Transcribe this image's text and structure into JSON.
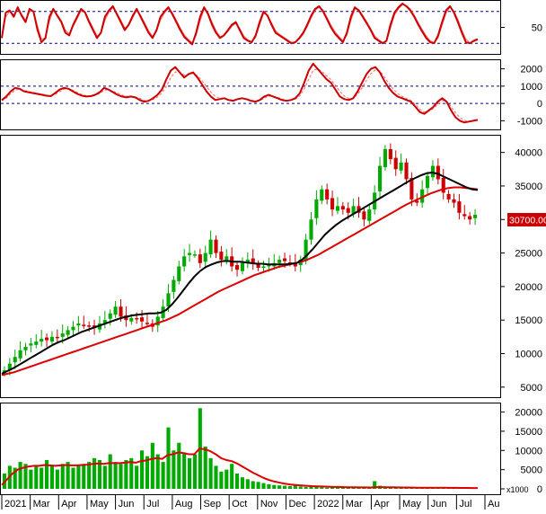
{
  "chart_data": [
    {
      "panel": "stochastic",
      "type": "line",
      "yticks": [
        50
      ],
      "guide_levels": [
        80,
        20
      ],
      "ylim": [
        0,
        100
      ],
      "series": [
        {
          "color": "#cc0000",
          "values": [
            30,
            78,
            82,
            70,
            88,
            72,
            60,
            85,
            80,
            45,
            22,
            30,
            70,
            85,
            72,
            60,
            40,
            35,
            55,
            70,
            85,
            78,
            60,
            45,
            30,
            40,
            70,
            82,
            90,
            75,
            60,
            45,
            55,
            72,
            85,
            70,
            55,
            40,
            30,
            45,
            70,
            80,
            88,
            75,
            60,
            45,
            32,
            25,
            18,
            40,
            70,
            88,
            75,
            55,
            40,
            30,
            35,
            45,
            55,
            60,
            45,
            30,
            25,
            22,
            35,
            60,
            80,
            72,
            55,
            40,
            35,
            30,
            25,
            20,
            22,
            30,
            40,
            55,
            72,
            85,
            90,
            80,
            65,
            50,
            38,
            30,
            22,
            40,
            70,
            88,
            82,
            70,
            58,
            45,
            30,
            25,
            20,
            25,
            55,
            78,
            88,
            95,
            90,
            82,
            70,
            55,
            42,
            30,
            22,
            20,
            35,
            60,
            82,
            90,
            78,
            60,
            40,
            22,
            20,
            25,
            28
          ]
        },
        {
          "color": "#ff6666",
          "values": [
            35,
            70,
            80,
            74,
            84,
            75,
            63,
            80,
            81,
            52,
            28,
            30,
            62,
            82,
            74,
            63,
            45,
            38,
            52,
            66,
            82,
            79,
            64,
            49,
            34,
            38,
            63,
            79,
            87,
            78,
            64,
            49,
            53,
            68,
            82,
            73,
            59,
            44,
            33,
            42,
            64,
            77,
            86,
            78,
            64,
            49,
            36,
            28,
            21,
            35,
            62,
            84,
            78,
            60,
            44,
            33,
            34,
            42,
            52,
            58,
            48,
            34,
            27,
            23,
            31,
            54,
            76,
            74,
            59,
            44,
            37,
            32,
            27,
            22,
            22,
            28,
            37,
            51,
            68,
            82,
            88,
            83,
            69,
            54,
            42,
            33,
            25,
            35,
            63,
            84,
            84,
            73,
            61,
            48,
            34,
            27,
            22,
            23,
            48,
            73,
            85,
            93,
            91,
            85,
            73,
            59,
            46,
            34,
            25,
            21,
            30,
            54,
            77,
            88,
            81,
            65,
            45,
            28,
            21,
            23,
            26
          ]
        }
      ]
    },
    {
      "panel": "macd",
      "type": "line",
      "yticks": [
        2000,
        1000,
        0,
        -1000
      ],
      "guide_levels": [
        1000,
        0
      ],
      "ylim": [
        -1500,
        2500
      ],
      "series": [
        {
          "color": "#cc0000",
          "values": [
            200,
            400,
            700,
            900,
            850,
            700,
            650,
            600,
            550,
            500,
            450,
            420,
            600,
            800,
            900,
            850,
            700,
            550,
            450,
            400,
            420,
            500,
            650,
            900,
            800,
            650,
            500,
            400,
            350,
            400,
            350,
            200,
            100,
            150,
            300,
            500,
            800,
            1400,
            1900,
            2100,
            1800,
            1500,
            1700,
            1800,
            1500,
            1100,
            700,
            400,
            200,
            250,
            300,
            200,
            150,
            250,
            300,
            250,
            150,
            100,
            200,
            400,
            500,
            400,
            300,
            200,
            150,
            200,
            300,
            600,
            1200,
            1900,
            2300,
            2000,
            1700,
            1400,
            1200,
            800,
            400,
            250,
            200,
            300,
            700,
            1200,
            1700,
            2000,
            2100,
            1800,
            1300,
            900,
            600,
            400,
            300,
            200,
            100,
            -200,
            -500,
            -600,
            -400,
            -200,
            100,
            300,
            100,
            -400,
            -800,
            -1000,
            -1100,
            -1050,
            -1000,
            -950
          ]
        },
        {
          "color": "#ff6666",
          "values": [
            150,
            300,
            550,
            780,
            830,
            760,
            690,
            640,
            590,
            540,
            490,
            450,
            520,
            680,
            820,
            850,
            760,
            630,
            520,
            450,
            430,
            470,
            570,
            770,
            800,
            720,
            600,
            490,
            420,
            410,
            380,
            290,
            180,
            160,
            230,
            380,
            610,
            1000,
            1480,
            1820,
            1810,
            1640,
            1660,
            1740,
            1600,
            1320,
            980,
            660,
            400,
            300,
            300,
            240,
            190,
            220,
            270,
            260,
            200,
            140,
            170,
            300,
            420,
            410,
            350,
            260,
            190,
            190,
            250,
            440,
            850,
            1400,
            1900,
            2000,
            1850,
            1600,
            1380,
            1050,
            700,
            430,
            290,
            290,
            530,
            900,
            1350,
            1720,
            1950,
            1880,
            1540,
            1160,
            830,
            580,
            410,
            280,
            170,
            -60,
            -330,
            -500,
            -450,
            -300,
            -60,
            170,
            130,
            -180,
            -540,
            -820,
            -980,
            -1030,
            -1010,
            -970
          ]
        }
      ]
    },
    {
      "panel": "price",
      "type": "candlestick",
      "yticks": [
        40000,
        35000,
        30000,
        25000,
        20000,
        15000,
        10000,
        5000
      ],
      "ylim": [
        3500,
        42500
      ],
      "last_price_label": "30700.00",
      "candle_colors": {
        "up": "#00aa00",
        "down": "#cc0000"
      },
      "closes": [
        7500,
        8500,
        9500,
        10500,
        11000,
        11500,
        11800,
        12200,
        12000,
        12500,
        12300,
        13000,
        13500,
        14000,
        14500,
        14200,
        14000,
        13800,
        14500,
        15000,
        16000,
        17000,
        15500,
        15000,
        15300,
        15200,
        14800,
        14500,
        14000,
        15500,
        17000,
        19000,
        21000,
        23000,
        24500,
        25000,
        24800,
        23500,
        25000,
        27000,
        25000,
        24000,
        24500,
        23000,
        22500,
        23500,
        24000,
        23500,
        22800,
        23000,
        23200,
        23500,
        24000,
        23800,
        23500,
        23000,
        24000,
        27000,
        30000,
        33000,
        34500,
        33000,
        31500,
        32000,
        31500,
        31000,
        32000,
        31000,
        30000,
        31500,
        34000,
        38000,
        40500,
        39000,
        37500,
        38500,
        36000,
        33000,
        32500,
        34500,
        36500,
        38000,
        36000,
        34000,
        33000,
        32500,
        31000,
        30500,
        30000,
        30700
      ],
      "series": [
        {
          "name": "",
          "color": "#000000",
          "values": [
            7000,
            7400,
            7800,
            8300,
            8800,
            9300,
            9800,
            10300,
            10800,
            11300,
            11700,
            12000,
            12400,
            12800,
            13200,
            13500,
            13800,
            14100,
            14400,
            14700,
            15000,
            15300,
            15500,
            15700,
            15800,
            15900,
            16000,
            16000,
            16100,
            16500,
            17300,
            18300,
            19400,
            20500,
            21500,
            22300,
            22900,
            23300,
            23600,
            23800,
            23800,
            23700,
            23700,
            23600,
            23500,
            23400,
            23400,
            23300,
            23300,
            23300,
            23300,
            23400,
            23500,
            24000,
            24800,
            25700,
            26700,
            27700,
            28500,
            29200,
            29800,
            30300,
            30800,
            31300,
            31800,
            32300,
            32800,
            33300,
            33800,
            34300,
            34800,
            35300,
            35800,
            36200,
            36600,
            36900,
            37000,
            36800,
            36400,
            36000,
            35600,
            35200,
            34800,
            34500,
            34400
          ]
        },
        {
          "name": "",
          "color": "#dd0000",
          "values": [
            6800,
            7000,
            7200,
            7500,
            7800,
            8100,
            8400,
            8700,
            9000,
            9300,
            9600,
            9900,
            10200,
            10500,
            10800,
            11100,
            11400,
            11700,
            12000,
            12300,
            12600,
            12900,
            13200,
            13500,
            13800,
            14100,
            14400,
            14700,
            15000,
            15400,
            15800,
            16300,
            16800,
            17300,
            17800,
            18300,
            18800,
            19300,
            19700,
            20100,
            20500,
            20900,
            21300,
            21700,
            22000,
            22300,
            22600,
            22900,
            23100,
            23300,
            23500,
            23700,
            24000,
            24400,
            24800,
            25300,
            25800,
            26300,
            26800,
            27300,
            27800,
            28300,
            28800,
            29300,
            29800,
            30300,
            30800,
            31300,
            31800,
            32300,
            32700,
            33100,
            33500,
            33900,
            34200,
            34500,
            34700,
            34800,
            34800,
            34700,
            34600,
            34500
          ]
        }
      ]
    },
    {
      "panel": "volume",
      "type": "bar",
      "yticks": [
        20000,
        15000,
        10000,
        5000,
        0
      ],
      "unit_label": "x1000",
      "ylim": [
        0,
        22000
      ],
      "bar_color": "#00aa00",
      "values": [
        4000,
        6000,
        5500,
        7000,
        6500,
        5000,
        6000,
        5500,
        7500,
        6000,
        5000,
        6500,
        7000,
        5500,
        6000,
        6500,
        7000,
        8000,
        7500,
        6000,
        9000,
        7000,
        6500,
        7500,
        8000,
        6000,
        10000,
        8500,
        12000,
        9000,
        7000,
        16000,
        10000,
        12000,
        9500,
        8000,
        9000,
        21000,
        11000,
        8000,
        6000,
        4500,
        5000,
        6500,
        4000,
        3000,
        2500,
        2000,
        1800,
        1500,
        1200,
        1000,
        900,
        800,
        700,
        1000,
        600,
        500,
        700,
        500,
        400,
        300,
        500,
        400,
        300,
        300,
        400,
        300,
        400,
        300,
        2000,
        800,
        500,
        400,
        300,
        300,
        250,
        300,
        200,
        250,
        300,
        200,
        250,
        200,
        180,
        200,
        150,
        200,
        150,
        200
      ],
      "series": [
        {
          "name": "",
          "color": "#dd0000",
          "values": [
            1000,
            2500,
            4000,
            5000,
            5500,
            5800,
            6000,
            6000,
            6200,
            6100,
            6000,
            6100,
            6200,
            6100,
            6100,
            6200,
            6300,
            6500,
            6600,
            6500,
            6700,
            6700,
            6700,
            6800,
            7000,
            6800,
            7200,
            7400,
            7800,
            8000,
            7800,
            8800,
            9000,
            9500,
            9300,
            9000,
            9000,
            10500,
            10300,
            9800,
            9000,
            8000,
            7500,
            7200,
            6600,
            5800,
            5000,
            4200,
            3500,
            2800,
            2300,
            1900,
            1600,
            1300,
            1100,
            1000,
            900,
            800,
            700,
            650,
            600,
            550,
            500,
            480,
            450,
            420,
            400,
            380,
            380,
            360,
            450,
            450,
            420,
            400,
            380,
            360,
            340,
            330,
            310,
            300,
            300,
            290,
            280,
            270,
            260,
            250,
            240,
            230,
            220,
            220
          ]
        }
      ]
    },
    {
      "panel": "time-axis",
      "type": "table",
      "x_labels": [
        "2021",
        "Mar",
        "Apr",
        "May",
        "Jun",
        "Jul",
        "Aug",
        "Sep",
        "Oct",
        "Nov",
        "Dec",
        "2022",
        "Mar",
        "Apr",
        "May",
        "Jun",
        "Jul",
        "Au"
      ]
    }
  ]
}
